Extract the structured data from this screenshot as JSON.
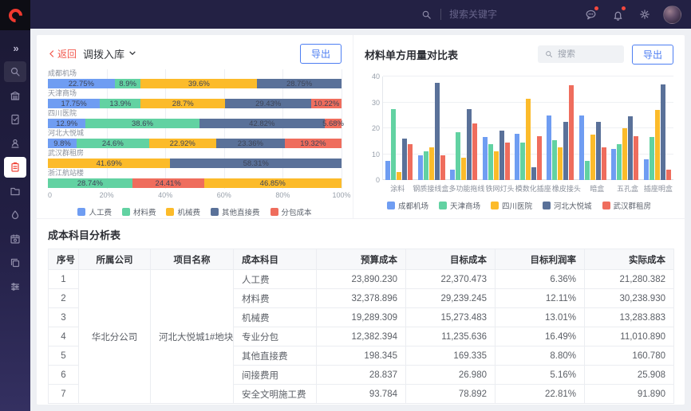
{
  "sidebar": {
    "icons": [
      {
        "name": "expand-sidebar-icon"
      },
      {
        "name": "search-icon",
        "boxed": true
      },
      {
        "name": "building-icon"
      },
      {
        "name": "document-check-icon"
      },
      {
        "name": "user-seal-icon"
      },
      {
        "name": "clipboard-icon",
        "active": true
      },
      {
        "name": "folder-icon"
      },
      {
        "name": "drop-icon"
      },
      {
        "name": "calendar-settings-icon"
      },
      {
        "name": "copy-icon"
      },
      {
        "name": "workflow-icon"
      }
    ],
    "logo": "C",
    "logo_color": "#f0392f"
  },
  "header": {
    "search_placeholder": "搜索关键字",
    "icons": [
      "search-icon",
      "message-icon",
      "bell-icon",
      "settings-icon",
      "avatar"
    ],
    "badge_color": "#f5483e"
  },
  "left_panel": {
    "back_label": "返回",
    "breadcrumb_title": "调拨入库",
    "export_label": "导出"
  },
  "right_panel": {
    "title": "材料单方用量对比表",
    "search_placeholder": "搜索",
    "export_label": "导出"
  },
  "chart_data": [
    {
      "type": "bar",
      "orientation": "horizontal-stacked",
      "unit": "%",
      "series": [
        "人工费",
        "材料费",
        "机械费",
        "其他直接费",
        "分包成本"
      ],
      "colors": {
        "人工费": "#6f9df2",
        "材料费": "#62d2a2",
        "机械费": "#fcbb2a",
        "其他直接费": "#5a7199",
        "分包成本": "#ef6d5d"
      },
      "xticks": [
        "0",
        "20%",
        "40%",
        "60%",
        "80%",
        "100%"
      ],
      "xlim": [
        0,
        100
      ],
      "rows": [
        {
          "category": "成都机场",
          "segments": [
            {
              "series": "人工费",
              "value": 22.75
            },
            {
              "series": "材料费",
              "value": 8.9
            },
            {
              "series": "机械费",
              "value": 39.6
            },
            {
              "series": "其他直接费",
              "value": 28.75
            }
          ]
        },
        {
          "category": "天津商场",
          "segments": [
            {
              "series": "人工费",
              "value": 17.75
            },
            {
              "series": "材料费",
              "value": 13.9
            },
            {
              "series": "机械费",
              "value": 28.7
            },
            {
              "series": "其他直接费",
              "value": 29.43
            },
            {
              "series": "分包成本",
              "value": 10.22
            }
          ]
        },
        {
          "category": "四川医院",
          "segments": [
            {
              "series": "人工费",
              "value": 12.9
            },
            {
              "series": "材料费",
              "value": 38.6
            },
            {
              "series": "其他直接费",
              "value": 42.82
            },
            {
              "series": "分包成本",
              "value": 5.68
            }
          ]
        },
        {
          "category": "河北大悦城",
          "segments": [
            {
              "series": "人工费",
              "value": 9.8
            },
            {
              "series": "材料费",
              "value": 24.6
            },
            {
              "series": "机械费",
              "value": 22.92
            },
            {
              "series": "其他直接费",
              "value": 23.36
            },
            {
              "series": "分包成本",
              "value": 19.32
            }
          ]
        },
        {
          "category": "武汉群租房",
          "segments": [
            {
              "series": "机械费",
              "value": 41.69
            },
            {
              "series": "其他直接费",
              "value": 58.31
            }
          ]
        },
        {
          "category": "浙江航站楼",
          "segments": [
            {
              "series": "材料费",
              "value": 28.74
            },
            {
              "series": "分包成本",
              "value": 24.41
            },
            {
              "series": "机械费",
              "value": 46.85
            }
          ]
        }
      ]
    },
    {
      "type": "bar",
      "orientation": "vertical-grouped",
      "title": "材料单方用量对比表",
      "categories": [
        "涂料",
        "钢质接线盒",
        "多功能拖线",
        "铁网灯头",
        "模数化插座",
        "橡皮接头",
        "暗盒",
        "五孔盒",
        "插座明盒"
      ],
      "yticks": [
        0,
        10,
        20,
        30,
        40
      ],
      "ylim": [
        0,
        40
      ],
      "series": [
        {
          "name": "成都机场",
          "color": "#6f9df2",
          "values": [
            7.5,
            9.5,
            4,
            16.5,
            18,
            25,
            25,
            12,
            8
          ]
        },
        {
          "name": "天津商场",
          "color": "#62d2a2",
          "values": [
            27.5,
            11,
            18.5,
            14,
            14.5,
            15.5,
            7.5,
            14,
            16.5
          ]
        },
        {
          "name": "四川医院",
          "color": "#fcbb2a",
          "values": [
            3,
            12.5,
            8.5,
            11,
            31.5,
            12.5,
            17.5,
            20,
            27
          ]
        },
        {
          "name": "河北大悦城",
          "color": "#5a7199",
          "values": [
            16,
            37.5,
            27.5,
            19,
            5,
            22.5,
            22.5,
            24.5,
            37
          ]
        },
        {
          "name": "武汉群租房",
          "color": "#ef6d5d",
          "values": [
            14,
            9.5,
            22,
            14.5,
            17,
            36.5,
            12.5,
            17,
            4
          ]
        }
      ]
    }
  ],
  "table": {
    "title": "成本科目分析表",
    "headers": [
      "序号",
      "所属公司",
      "项目名称",
      "成本科目",
      "预算成本",
      "目标成本",
      "目标利润率",
      "实际成本"
    ],
    "company": "华北分公司",
    "project": "河北大悦城1#地块项目",
    "rows": [
      {
        "seq": "1",
        "subject": "人工费",
        "budget": "23,890.230",
        "target": "22,370.473",
        "rate": "6.36%",
        "actual": "21,280.382"
      },
      {
        "seq": "2",
        "subject": "材料费",
        "budget": "32,378.896",
        "target": "29,239.245",
        "rate": "12.11%",
        "actual": "30,238.930"
      },
      {
        "seq": "3",
        "subject": "机械费",
        "budget": "19,289.309",
        "target": "15,273.483",
        "rate": "13.01%",
        "actual": "13,283.883"
      },
      {
        "seq": "4",
        "subject": "专业分包",
        "budget": "12,382.394",
        "target": "11,235.636",
        "rate": "16.49%",
        "actual": "11,010.890"
      },
      {
        "seq": "5",
        "subject": "其他直接费",
        "budget": "198.345",
        "target": "169.335",
        "rate": "8.80%",
        "actual": "160.780"
      },
      {
        "seq": "6",
        "subject": "间接费用",
        "budget": "28.837",
        "target": "26.980",
        "rate": "5.16%",
        "actual": "25.908"
      },
      {
        "seq": "7",
        "subject": "安全文明施工费",
        "budget": "93.784",
        "target": "78.892",
        "rate": "22.81%",
        "actual": "91.890"
      }
    ]
  }
}
